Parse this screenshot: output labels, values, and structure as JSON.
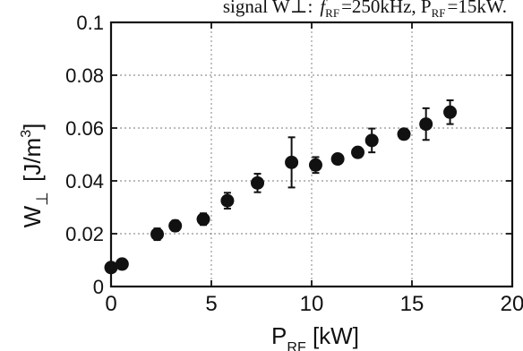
{
  "chart_data": {
    "type": "scatter",
    "caption": {
      "main": "signal W",
      "perp": "⊥",
      "colon": ":",
      "f": "f",
      "f_sub": "RF",
      "f_val": "=250kHz, P",
      "p_sub": "RF",
      "p_val": "=15kW."
    },
    "xlabel": {
      "main": "P",
      "sub": "RF",
      "unit": " [kW]"
    },
    "ylabel": {
      "main": "W",
      "sub": "⊥",
      "unit": " [J/m",
      "sup": "3",
      "close": "]"
    },
    "xlim": [
      0,
      20
    ],
    "ylim": [
      0,
      0.1
    ],
    "x_ticks": [
      0,
      5,
      10,
      15,
      20
    ],
    "x_tick_labels": [
      "0",
      "5",
      "10",
      "15",
      "20"
    ],
    "y_ticks": [
      0,
      0.02,
      0.04,
      0.06,
      0.08,
      0.1
    ],
    "y_tick_labels": [
      "0",
      "0.02",
      "0.04",
      "0.06",
      "0.08",
      "0.1"
    ],
    "grid": true,
    "marker_color": "#111111",
    "points": [
      {
        "x": 0.0,
        "y": 0.0072,
        "err": 0.0012
      },
      {
        "x": 0.55,
        "y": 0.0085,
        "err": 0.0012
      },
      {
        "x": 2.3,
        "y": 0.0198,
        "err": 0.0022
      },
      {
        "x": 3.2,
        "y": 0.023,
        "err": 0.002
      },
      {
        "x": 4.6,
        "y": 0.0255,
        "err": 0.0022
      },
      {
        "x": 5.8,
        "y": 0.0325,
        "err": 0.003
      },
      {
        "x": 7.3,
        "y": 0.0392,
        "err": 0.0035
      },
      {
        "x": 9.0,
        "y": 0.047,
        "err": 0.0095
      },
      {
        "x": 10.2,
        "y": 0.046,
        "err": 0.003
      },
      {
        "x": 11.3,
        "y": 0.0483,
        "err": 0.0018
      },
      {
        "x": 12.3,
        "y": 0.0508,
        "err": 0.0015
      },
      {
        "x": 13.0,
        "y": 0.0553,
        "err": 0.0045
      },
      {
        "x": 14.6,
        "y": 0.0577,
        "err": 0.0012
      },
      {
        "x": 15.7,
        "y": 0.0615,
        "err": 0.006
      },
      {
        "x": 16.9,
        "y": 0.066,
        "err": 0.0045
      }
    ]
  }
}
